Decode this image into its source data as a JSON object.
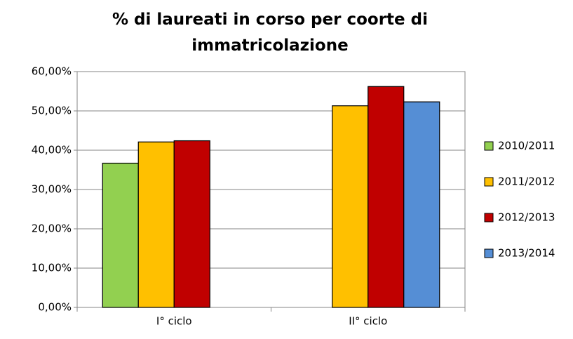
{
  "chart_data": {
    "type": "bar",
    "title": "% di laureati in corso per coorte di immatricolazione",
    "categories": [
      "I° ciclo",
      "II° ciclo"
    ],
    "series": [
      {
        "name": "2010/2011",
        "color": "#92d050",
        "values": [
          36.7,
          null
        ]
      },
      {
        "name": "2011/2012",
        "color": "#ffc000",
        "values": [
          42.1,
          51.3
        ]
      },
      {
        "name": "2012/2013",
        "color": "#c00000",
        "values": [
          42.4,
          56.2
        ]
      },
      {
        "name": "2013/2014",
        "color": "#558ed5",
        "values": [
          null,
          52.3
        ]
      }
    ],
    "ylim": [
      0,
      60
    ],
    "yticks": [
      {
        "value": 0,
        "label": "0,00%"
      },
      {
        "value": 10,
        "label": "10,00%"
      },
      {
        "value": 20,
        "label": "20,00%"
      },
      {
        "value": 30,
        "label": "30,00%"
      },
      {
        "value": 40,
        "label": "40,00%"
      },
      {
        "value": 50,
        "label": "50,00%"
      },
      {
        "value": 60,
        "label": "60,00%"
      }
    ],
    "grid": true,
    "legend": "right"
  }
}
